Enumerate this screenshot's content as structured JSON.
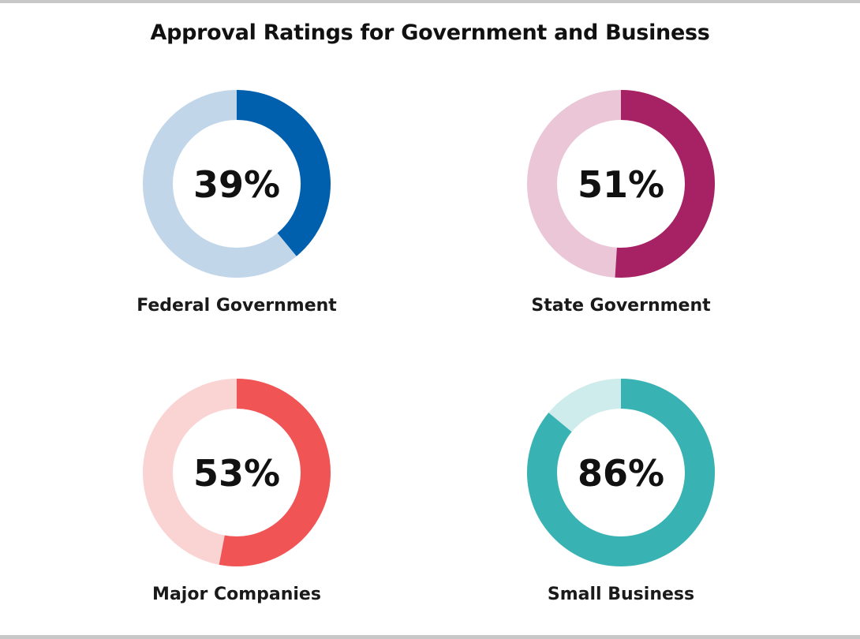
{
  "chart_data": {
    "type": "pie",
    "title": "Approval Ratings for Government and Business",
    "categories": [
      "Federal Government",
      "State Government",
      "Major Companies",
      "Small Business"
    ],
    "values": [
      39,
      51,
      53,
      86
    ],
    "value_labels": [
      "39%",
      "51%",
      "53%",
      "86%"
    ],
    "unit": "%",
    "max": 100,
    "colors": {
      "fill": [
        "#0060ae",
        "#a62264",
        "#f05454",
        "#38b2b2"
      ],
      "track": [
        "#c2d6ea",
        "#eac6d7",
        "#fad3d3",
        "#cdeceb"
      ]
    }
  }
}
